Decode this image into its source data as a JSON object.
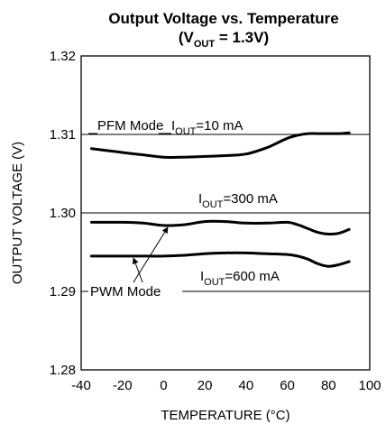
{
  "chart_data": {
    "type": "line",
    "title": "Output Voltage vs. Temperature",
    "subtitle": {
      "prefix": "(V",
      "sub": "OUT",
      "suffix": " = 1.3V)"
    },
    "xlabel": "TEMPERATURE (°C)",
    "ylabel": "OUTPUT VOLTAGE (V)",
    "xlim": [
      -40,
      100
    ],
    "ylim": [
      1.28,
      1.32
    ],
    "x_ticks": [
      -40,
      -20,
      0,
      20,
      40,
      60,
      80,
      100
    ],
    "y_ticks": [
      "1.28",
      "1.29",
      "1.30",
      "1.31",
      "1.32"
    ],
    "grid": true,
    "series": [
      {
        "id": "iout-10ma",
        "x": [
          -35,
          -20,
          -10,
          0,
          10,
          20,
          30,
          40,
          50,
          55,
          60,
          65,
          70,
          75,
          80,
          85,
          90
        ],
        "y": [
          1.3082,
          1.3077,
          1.3074,
          1.3071,
          1.3071,
          1.3072,
          1.3073,
          1.3075,
          1.3083,
          1.3089,
          1.3095,
          1.3099,
          1.3101,
          1.3101,
          1.3101,
          1.3101,
          1.3102
        ]
      },
      {
        "id": "iout-300ma",
        "x": [
          -35,
          -20,
          -10,
          0,
          10,
          20,
          30,
          40,
          50,
          60,
          65,
          70,
          75,
          80,
          85,
          90
        ],
        "y": [
          1.2988,
          1.2988,
          1.2987,
          1.2984,
          1.2985,
          1.2989,
          1.2989,
          1.2987,
          1.2987,
          1.2988,
          1.2985,
          1.298,
          1.2975,
          1.2973,
          1.2974,
          1.2979
        ]
      },
      {
        "id": "iout-600ma",
        "x": [
          -35,
          -20,
          -10,
          0,
          10,
          20,
          30,
          40,
          50,
          60,
          65,
          70,
          75,
          80,
          85,
          90
        ],
        "y": [
          1.2945,
          1.2945,
          1.2945,
          1.2945,
          1.2946,
          1.2948,
          1.2949,
          1.2949,
          1.2948,
          1.2947,
          1.2945,
          1.2941,
          1.2935,
          1.2932,
          1.2934,
          1.2938
        ]
      }
    ],
    "annotations": {
      "pfm_mode": "PFM Mode",
      "pwm_mode": "PWM Mode",
      "iout_10": {
        "prefix": "I",
        "sub": "OUT",
        "suffix": "=10 mA"
      },
      "iout_300": {
        "prefix": "I",
        "sub": "OUT",
        "suffix": "=300 mA"
      },
      "iout_600": {
        "prefix": "I",
        "sub": "OUT",
        "suffix": "=600 mA"
      }
    }
  }
}
